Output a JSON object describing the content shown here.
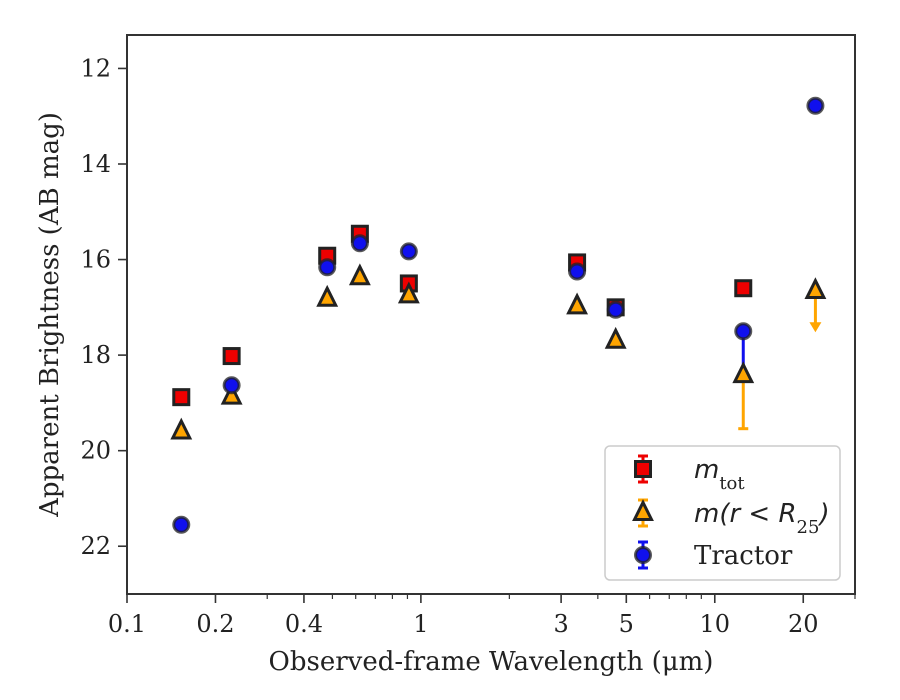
{
  "chart_data": {
    "type": "scatter",
    "xlabel": "Observed-frame Wavelength (μm)",
    "ylabel": "Apparent Brightness (AB mag)",
    "xscale": "log",
    "xlim": [
      0.1,
      30
    ],
    "ylim": [
      23,
      11.3
    ],
    "y_inverted": true,
    "x_ticks": [
      0.1,
      0.2,
      0.4,
      1,
      3,
      5,
      10,
      20
    ],
    "x_tick_labels": [
      "0.1",
      "0.2",
      "0.4",
      "1",
      "3",
      "5",
      "10",
      "20"
    ],
    "y_ticks": [
      12,
      14,
      16,
      18,
      20,
      22
    ],
    "y_tick_labels": [
      "12",
      "14",
      "16",
      "18",
      "20",
      "22"
    ],
    "legend_position": "lower-right",
    "series": [
      {
        "name": "m_tot",
        "legend_label": {
          "main": "m",
          "sub": "tot"
        },
        "marker": "square",
        "color": "#ee0000",
        "points": [
          {
            "x": 0.153,
            "y": 18.88
          },
          {
            "x": 0.227,
            "y": 18.02
          },
          {
            "x": 0.48,
            "y": 15.92
          },
          {
            "x": 0.62,
            "y": 15.46
          },
          {
            "x": 0.91,
            "y": 16.5
          },
          {
            "x": 3.4,
            "y": 16.06
          },
          {
            "x": 4.6,
            "y": 17.0
          },
          {
            "x": 12.5,
            "y": 16.6
          }
        ]
      },
      {
        "name": "m(r < R25)",
        "legend_label": {
          "main": "m(r < R",
          "sub": "25",
          "tail": ")"
        },
        "marker": "triangle",
        "color": "#ffa500",
        "points": [
          {
            "x": 0.153,
            "y": 19.6
          },
          {
            "x": 0.227,
            "y": 18.87
          },
          {
            "x": 0.48,
            "y": 16.82
          },
          {
            "x": 0.62,
            "y": 16.37
          },
          {
            "x": 0.91,
            "y": 16.75
          },
          {
            "x": 3.4,
            "y": 16.98
          },
          {
            "x": 4.6,
            "y": 17.7
          },
          {
            "x": 12.5,
            "y": 18.42,
            "yerr_low": 1.12
          },
          {
            "x": 22.0,
            "y": 16.66,
            "upper_limit": true
          }
        ]
      },
      {
        "name": "Tractor",
        "legend_label": {
          "main": "Tractor"
        },
        "marker": "circle",
        "color": "#1010ee",
        "points": [
          {
            "x": 0.153,
            "y": 21.55
          },
          {
            "x": 0.227,
            "y": 18.63
          },
          {
            "x": 0.48,
            "y": 16.16
          },
          {
            "x": 0.62,
            "y": 15.66
          },
          {
            "x": 0.91,
            "y": 15.83
          },
          {
            "x": 3.4,
            "y": 16.25
          },
          {
            "x": 4.6,
            "y": 17.05
          },
          {
            "x": 12.5,
            "y": 17.5,
            "yerr_high": 0.9
          },
          {
            "x": 22.0,
            "y": 12.78
          }
        ]
      }
    ]
  }
}
